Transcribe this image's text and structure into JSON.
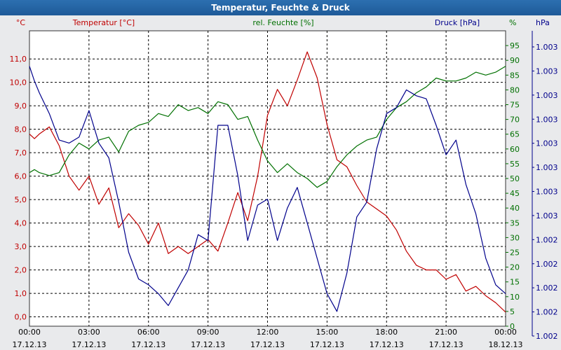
{
  "window": {
    "title": "Temperatur, Feuchte & Druck"
  },
  "chart_data": {
    "type": "line",
    "grid": true,
    "x": {
      "ticks": [
        {
          "time": "00:00",
          "date": "17.12.13"
        },
        {
          "time": "03:00",
          "date": "17.12.13"
        },
        {
          "time": "06:00",
          "date": "17.12.13"
        },
        {
          "time": "09:00",
          "date": "17.12.13"
        },
        {
          "time": "12:00",
          "date": "17.12.13"
        },
        {
          "time": "15:00",
          "date": "17.12.13"
        },
        {
          "time": "18:00",
          "date": "17.12.13"
        },
        {
          "time": "21:00",
          "date": "17.12.13"
        },
        {
          "time": "00:00",
          "date": "18.12.13"
        }
      ],
      "range_hours": [
        0,
        24
      ]
    },
    "axes": {
      "temperature": {
        "unit_label": "°C",
        "series_label": "Temperatur [°C]",
        "color": "#c00000",
        "range": [
          -0.4,
          12.2
        ],
        "ticks": [
          "0,0",
          "1,0",
          "2,0",
          "3,0",
          "4,0",
          "5,0",
          "6,0",
          "7,0",
          "8,0",
          "9,0",
          "10,0",
          "11,0"
        ]
      },
      "humidity": {
        "unit_label": "%",
        "series_label": "rel. Feuchte [%]",
        "color": "#007000",
        "range": [
          0,
          100
        ],
        "ticks": [
          "0",
          "5",
          "10",
          "15",
          "20",
          "25",
          "30",
          "35",
          "40",
          "45",
          "50",
          "55",
          "60",
          "65",
          "70",
          "75",
          "80",
          "85",
          "90",
          "95"
        ]
      },
      "pressure": {
        "unit_label": "hPa",
        "series_label": "Druck [hPa]",
        "color": "#00008b",
        "ticks": [
          "1.002",
          "1.002",
          "1.002",
          "1.002",
          "1.002",
          "1.003",
          "1.003",
          "1.003",
          "1.003",
          "1.003",
          "1.003",
          "1.003",
          "1.003"
        ]
      }
    },
    "series": [
      {
        "name": "Temperatur [°C]",
        "axis": "temperature",
        "x": [
          0,
          0.25,
          0.5,
          1,
          1.5,
          2,
          2.5,
          3,
          3.5,
          4,
          4.5,
          5,
          5.5,
          6,
          6.5,
          7,
          7.5,
          8,
          8.5,
          9,
          9.5,
          10,
          10.5,
          11,
          11.5,
          12,
          12.5,
          13,
          13.5,
          14,
          14.5,
          15,
          15.5,
          16,
          16.5,
          17,
          17.5,
          18,
          18.5,
          19,
          19.5,
          20,
          20.5,
          21,
          21.5,
          22,
          22.5,
          23,
          23.5,
          24
        ],
        "values": [
          7.8,
          7.6,
          7.8,
          8.1,
          7.3,
          6.0,
          5.4,
          6.0,
          4.8,
          5.5,
          3.8,
          4.4,
          3.9,
          3.1,
          4.0,
          2.7,
          3.0,
          2.7,
          3.0,
          3.3,
          2.8,
          4.0,
          5.3,
          4.1,
          6.0,
          8.6,
          9.7,
          9.0,
          10.1,
          11.3,
          10.2,
          8.2,
          6.7,
          6.4,
          5.6,
          4.9,
          4.6,
          4.3,
          3.7,
          2.8,
          2.2,
          2.0,
          2.0,
          1.6,
          1.8,
          1.1,
          1.3,
          0.9,
          0.6,
          0.2
        ]
      },
      {
        "name": "rel. Feuchte [%]",
        "axis": "humidity",
        "x": [
          0,
          0.25,
          0.5,
          1,
          1.5,
          2,
          2.5,
          3,
          3.5,
          4,
          4.5,
          5,
          5.5,
          6,
          6.5,
          7,
          7.5,
          8,
          8.5,
          9,
          9.5,
          10,
          10.5,
          11,
          11.5,
          12,
          12.5,
          13,
          13.5,
          14,
          14.5,
          15,
          15.5,
          16,
          16.5,
          17,
          17.5,
          18,
          18.5,
          19,
          19.5,
          20,
          20.5,
          21,
          21.5,
          22,
          22.5,
          23,
          23.5,
          24
        ],
        "values": [
          52,
          53,
          52,
          51,
          52,
          58,
          62,
          60,
          63,
          64,
          59,
          66,
          68,
          69,
          72,
          71,
          75,
          73,
          74,
          72,
          76,
          75,
          70,
          71,
          63,
          56,
          52,
          55,
          52,
          50,
          47,
          49,
          54,
          58,
          61,
          63,
          64,
          70,
          74,
          76,
          79,
          81,
          84,
          83,
          83,
          84,
          86,
          85,
          86,
          88
        ]
      },
      {
        "name": "Druck [hPa]",
        "axis": "pressure",
        "x": [
          0,
          0.25,
          0.5,
          1,
          1.5,
          2,
          2.5,
          3,
          3.5,
          4,
          4.5,
          5,
          5.5,
          6,
          6.5,
          7,
          7.5,
          8,
          8.5,
          9,
          9.5,
          10,
          10.5,
          11,
          11.5,
          12,
          12.5,
          13,
          13.5,
          14,
          14.5,
          15,
          15.5,
          16,
          16.5,
          17,
          17.5,
          18,
          18.5,
          19,
          19.5,
          20,
          20.5,
          21,
          21.5,
          22,
          22.5,
          23,
          23.5,
          24
        ],
        "values": [
          0.88,
          0.83,
          0.79,
          0.72,
          0.63,
          0.62,
          0.64,
          0.73,
          0.62,
          0.57,
          0.42,
          0.25,
          0.16,
          0.14,
          0.11,
          0.07,
          0.13,
          0.19,
          0.31,
          0.29,
          0.68,
          0.68,
          0.51,
          0.29,
          0.41,
          0.43,
          0.29,
          0.4,
          0.47,
          0.35,
          0.23,
          0.11,
          0.05,
          0.18,
          0.37,
          0.42,
          0.6,
          0.72,
          0.74,
          0.8,
          0.78,
          0.77,
          0.68,
          0.58,
          0.63,
          0.48,
          0.38,
          0.23,
          0.14,
          0.11
        ]
      }
    ]
  }
}
